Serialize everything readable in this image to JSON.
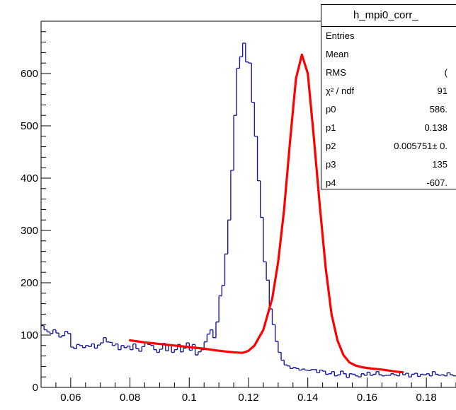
{
  "stats": {
    "title": "h_mpi0_corr_",
    "rows": [
      {
        "name": "Entries",
        "value": ""
      },
      {
        "name": "Mean",
        "value": ""
      },
      {
        "name": "RMS",
        "value": "("
      },
      {
        "name": "χ² / ndf",
        "value": "91"
      },
      {
        "name": "p0",
        "value": "586."
      },
      {
        "name": "p1",
        "value": "0.138"
      },
      {
        "name": "p2",
        "value": "0.005751± 0."
      },
      {
        "name": "p3",
        "value": "135"
      },
      {
        "name": "p4",
        "value": "-607."
      }
    ]
  },
  "chart_data": {
    "type": "bar",
    "style": "step-histogram",
    "xlim": [
      0.05,
      0.19
    ],
    "ylim": [
      0,
      700
    ],
    "xticks": [
      "0.06",
      "0.08",
      "0.1",
      "0.12",
      "0.14",
      "0.16",
      "0.18"
    ],
    "yticks": [
      "0",
      "100",
      "200",
      "300",
      "400",
      "500",
      "600"
    ],
    "histogram": {
      "bin_width": 0.001,
      "x_start": 0.05,
      "values": [
        118,
        110,
        106,
        103,
        110,
        104,
        96,
        99,
        107,
        103,
        77,
        74,
        82,
        80,
        76,
        80,
        78,
        83,
        75,
        81,
        85,
        95,
        87,
        86,
        80,
        83,
        72,
        80,
        76,
        79,
        72,
        83,
        74,
        69,
        78,
        86,
        82,
        80,
        72,
        67,
        73,
        84,
        70,
        80,
        67,
        72,
        82,
        68,
        75,
        85,
        71,
        82,
        62,
        68,
        72,
        87,
        102,
        110,
        95,
        125,
        175,
        195,
        255,
        320,
        415,
        520,
        610,
        632,
        658,
        622,
        620,
        545,
        480,
        395,
        325,
        240,
        205,
        150,
        120,
        88,
        67,
        52,
        43,
        41,
        36,
        38,
        36,
        33,
        35,
        33,
        32,
        34,
        34,
        28,
        33,
        31,
        25,
        26,
        30,
        22,
        24,
        31,
        26,
        19,
        26,
        25,
        22,
        20,
        26,
        23,
        29,
        23,
        25,
        30,
        24,
        22,
        23,
        23,
        26,
        24,
        22,
        28,
        24,
        27,
        20,
        25,
        27,
        21,
        25,
        24,
        26,
        22,
        30,
        25,
        23,
        24,
        22,
        28,
        24,
        22
      ]
    },
    "fit": {
      "color": "#ff0000",
      "x_range": [
        0.08,
        0.172
      ],
      "points": [
        [
          0.08,
          90
        ],
        [
          0.085,
          86
        ],
        [
          0.09,
          83
        ],
        [
          0.095,
          80
        ],
        [
          0.1,
          77
        ],
        [
          0.105,
          74
        ],
        [
          0.11,
          70
        ],
        [
          0.115,
          67
        ],
        [
          0.118,
          66
        ],
        [
          0.12,
          70
        ],
        [
          0.122,
          80
        ],
        [
          0.125,
          110
        ],
        [
          0.128,
          170
        ],
        [
          0.13,
          240
        ],
        [
          0.132,
          340
        ],
        [
          0.134,
          470
        ],
        [
          0.136,
          590
        ],
        [
          0.138,
          636
        ],
        [
          0.14,
          600
        ],
        [
          0.142,
          480
        ],
        [
          0.144,
          350
        ],
        [
          0.146,
          230
        ],
        [
          0.148,
          140
        ],
        [
          0.15,
          90
        ],
        [
          0.152,
          62
        ],
        [
          0.154,
          48
        ],
        [
          0.156,
          42
        ],
        [
          0.158,
          39
        ],
        [
          0.16,
          37
        ],
        [
          0.165,
          34
        ],
        [
          0.17,
          30
        ],
        [
          0.172,
          29
        ]
      ]
    },
    "colors": {
      "histogram": "#1a1a9a",
      "fit": "#ff0000"
    },
    "grid": false
  }
}
